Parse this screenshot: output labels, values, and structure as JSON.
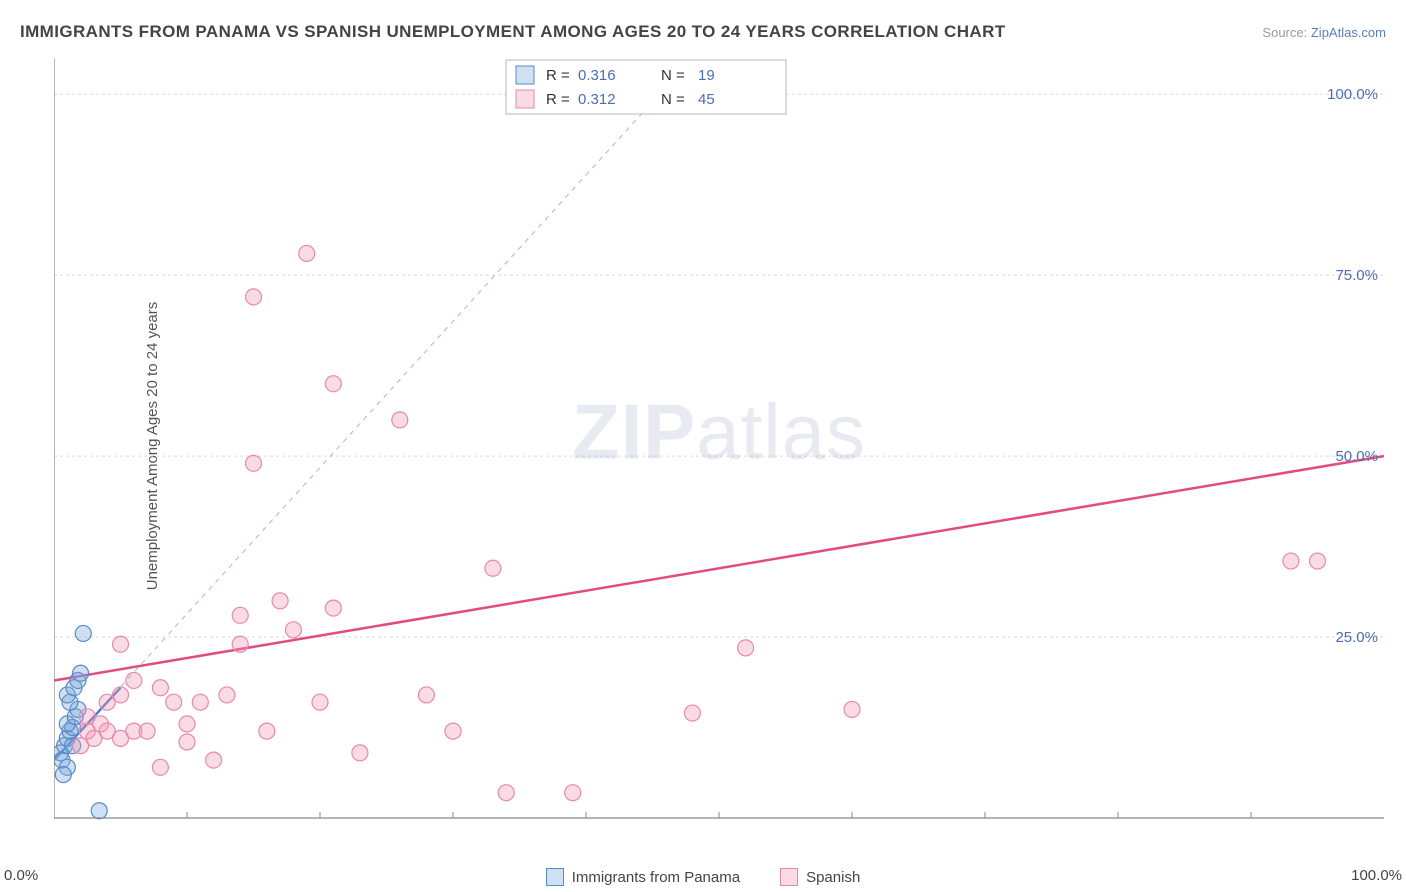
{
  "title": "IMMIGRANTS FROM PANAMA VS SPANISH UNEMPLOYMENT AMONG AGES 20 TO 24 YEARS CORRELATION CHART",
  "source_label": "Source:",
  "source_name": "ZipAtlas.com",
  "ylabel": "Unemployment Among Ages 20 to 24 years",
  "watermark_a": "ZIP",
  "watermark_b": "atlas",
  "chart": {
    "type": "scatter",
    "xlim": [
      0,
      100
    ],
    "ylim": [
      0,
      105
    ],
    "yticks": [
      25,
      50,
      75,
      100
    ],
    "ytick_labels": [
      "25.0%",
      "50.0%",
      "75.0%",
      "100.0%"
    ],
    "x_corner_labels": [
      "0.0%",
      "100.0%"
    ],
    "grid_color": "#d9d9d9",
    "axis_color": "#888888",
    "background_color": "#ffffff",
    "tick_label_color": "#4a6fb0",
    "marker_radius": 8,
    "series": [
      {
        "name": "Immigrants from Panama",
        "fill": "rgba(120,165,220,0.35)",
        "stroke": "#5a8ac8",
        "R": "0.316",
        "N": "19",
        "trend": {
          "x1": 0,
          "y1": 8,
          "x2": 5,
          "y2": 18,
          "ext_x2": 48,
          "ext_y2": 105
        },
        "points": [
          [
            0.5,
            9
          ],
          [
            0.8,
            10
          ],
          [
            1.0,
            11
          ],
          [
            1.2,
            12
          ],
          [
            1.4,
            12.5
          ],
          [
            1.0,
            13
          ],
          [
            1.6,
            14
          ],
          [
            1.8,
            15
          ],
          [
            1.2,
            16
          ],
          [
            1.0,
            17
          ],
          [
            1.5,
            18
          ],
          [
            1.8,
            19
          ],
          [
            2.0,
            20
          ],
          [
            0.6,
            8
          ],
          [
            1.4,
            10
          ],
          [
            2.2,
            25.5
          ],
          [
            1.0,
            7
          ],
          [
            0.7,
            6
          ],
          [
            3.4,
            1
          ]
        ]
      },
      {
        "name": "Spanish",
        "fill": "rgba(240,150,180,0.35)",
        "stroke": "#e58aad",
        "R": "0.312",
        "N": "45",
        "trend": {
          "x1": 0,
          "y1": 19,
          "x2": 100,
          "y2": 50
        },
        "points": [
          [
            2,
            10
          ],
          [
            2.5,
            12
          ],
          [
            3,
            11
          ],
          [
            3.5,
            13
          ],
          [
            4,
            12
          ],
          [
            4,
            16
          ],
          [
            5,
            11
          ],
          [
            5,
            17
          ],
          [
            6,
            19
          ],
          [
            6,
            12
          ],
          [
            5,
            24
          ],
          [
            7,
            12
          ],
          [
            8,
            7
          ],
          [
            8,
            18
          ],
          [
            9,
            16
          ],
          [
            10,
            13
          ],
          [
            10,
            10.5
          ],
          [
            11,
            16
          ],
          [
            12,
            8
          ],
          [
            13,
            17
          ],
          [
            14,
            24
          ],
          [
            14,
            28
          ],
          [
            15,
            72
          ],
          [
            15,
            49
          ],
          [
            16,
            12
          ],
          [
            17,
            30
          ],
          [
            18,
            26
          ],
          [
            19,
            78
          ],
          [
            20,
            16
          ],
          [
            21,
            29
          ],
          [
            21,
            60
          ],
          [
            23,
            9
          ],
          [
            26,
            55
          ],
          [
            28,
            17
          ],
          [
            30,
            12
          ],
          [
            33,
            34.5
          ],
          [
            34,
            3.5
          ],
          [
            39,
            3.5
          ],
          [
            40,
            103
          ],
          [
            48,
            14.5
          ],
          [
            52,
            23.5
          ],
          [
            60,
            15
          ],
          [
            93,
            35.5
          ],
          [
            95,
            35.5
          ],
          [
            2.5,
            14
          ]
        ]
      }
    ]
  },
  "statbox": {
    "R_label": "R =",
    "N_label": "N ="
  }
}
